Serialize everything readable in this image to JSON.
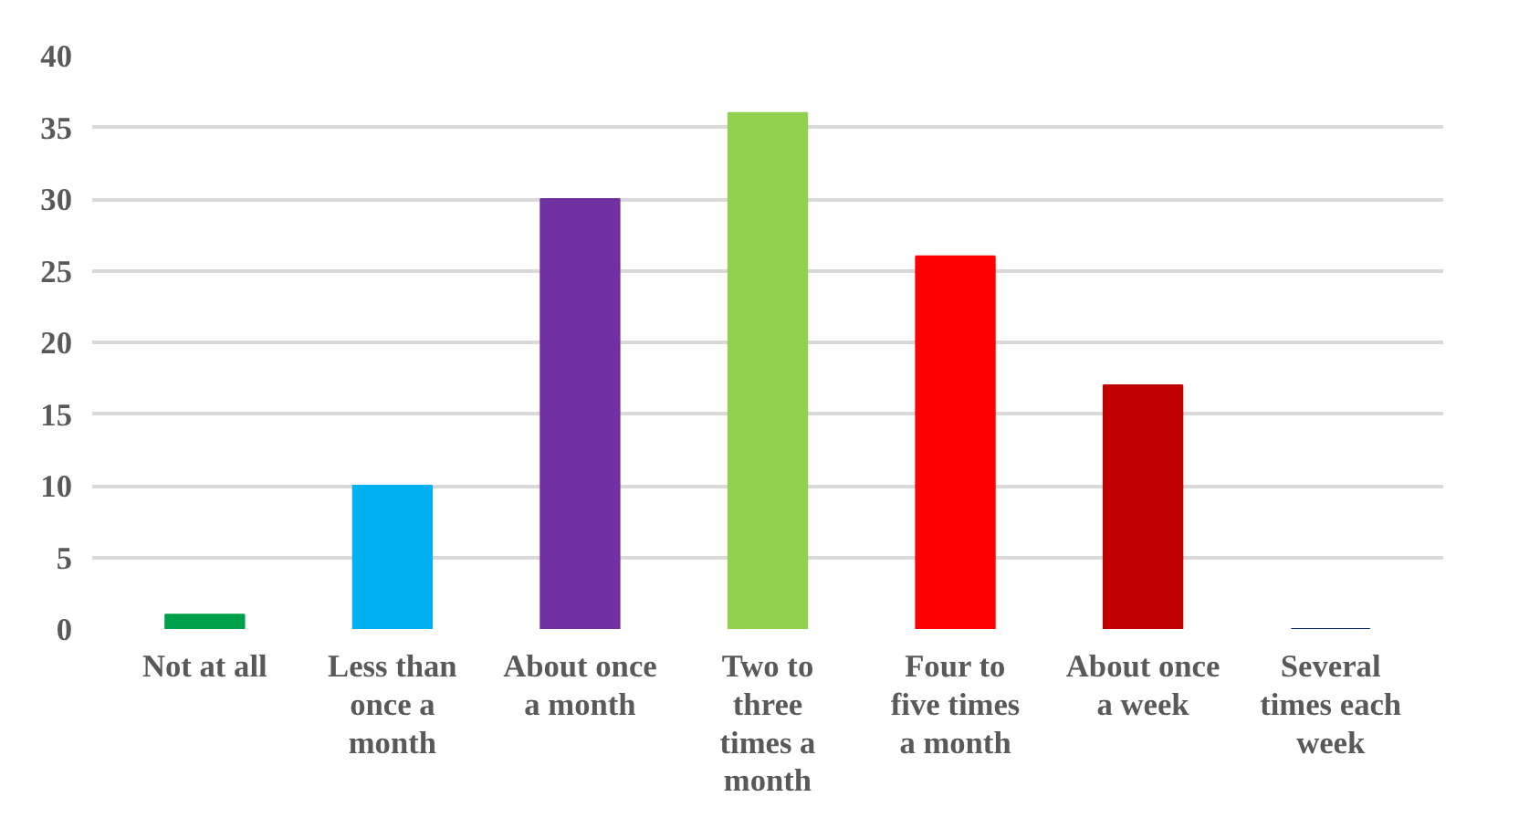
{
  "chart_data": {
    "type": "bar",
    "categories": [
      "Not at all",
      "Less than once a month",
      "About once a month",
      "Two to three times a month",
      "Four to five times a month",
      "About once a week",
      "Several times each week"
    ],
    "values": [
      1,
      10,
      30,
      36,
      26,
      17,
      0
    ],
    "colors": [
      "#00a04a",
      "#00b0f0",
      "#7030a0",
      "#92d050",
      "#ff0000",
      "#c00000",
      "#002060"
    ],
    "ylim": [
      0,
      40
    ],
    "yticks": [
      0,
      5,
      10,
      15,
      20,
      25,
      30,
      35,
      40
    ],
    "grid": "y"
  }
}
